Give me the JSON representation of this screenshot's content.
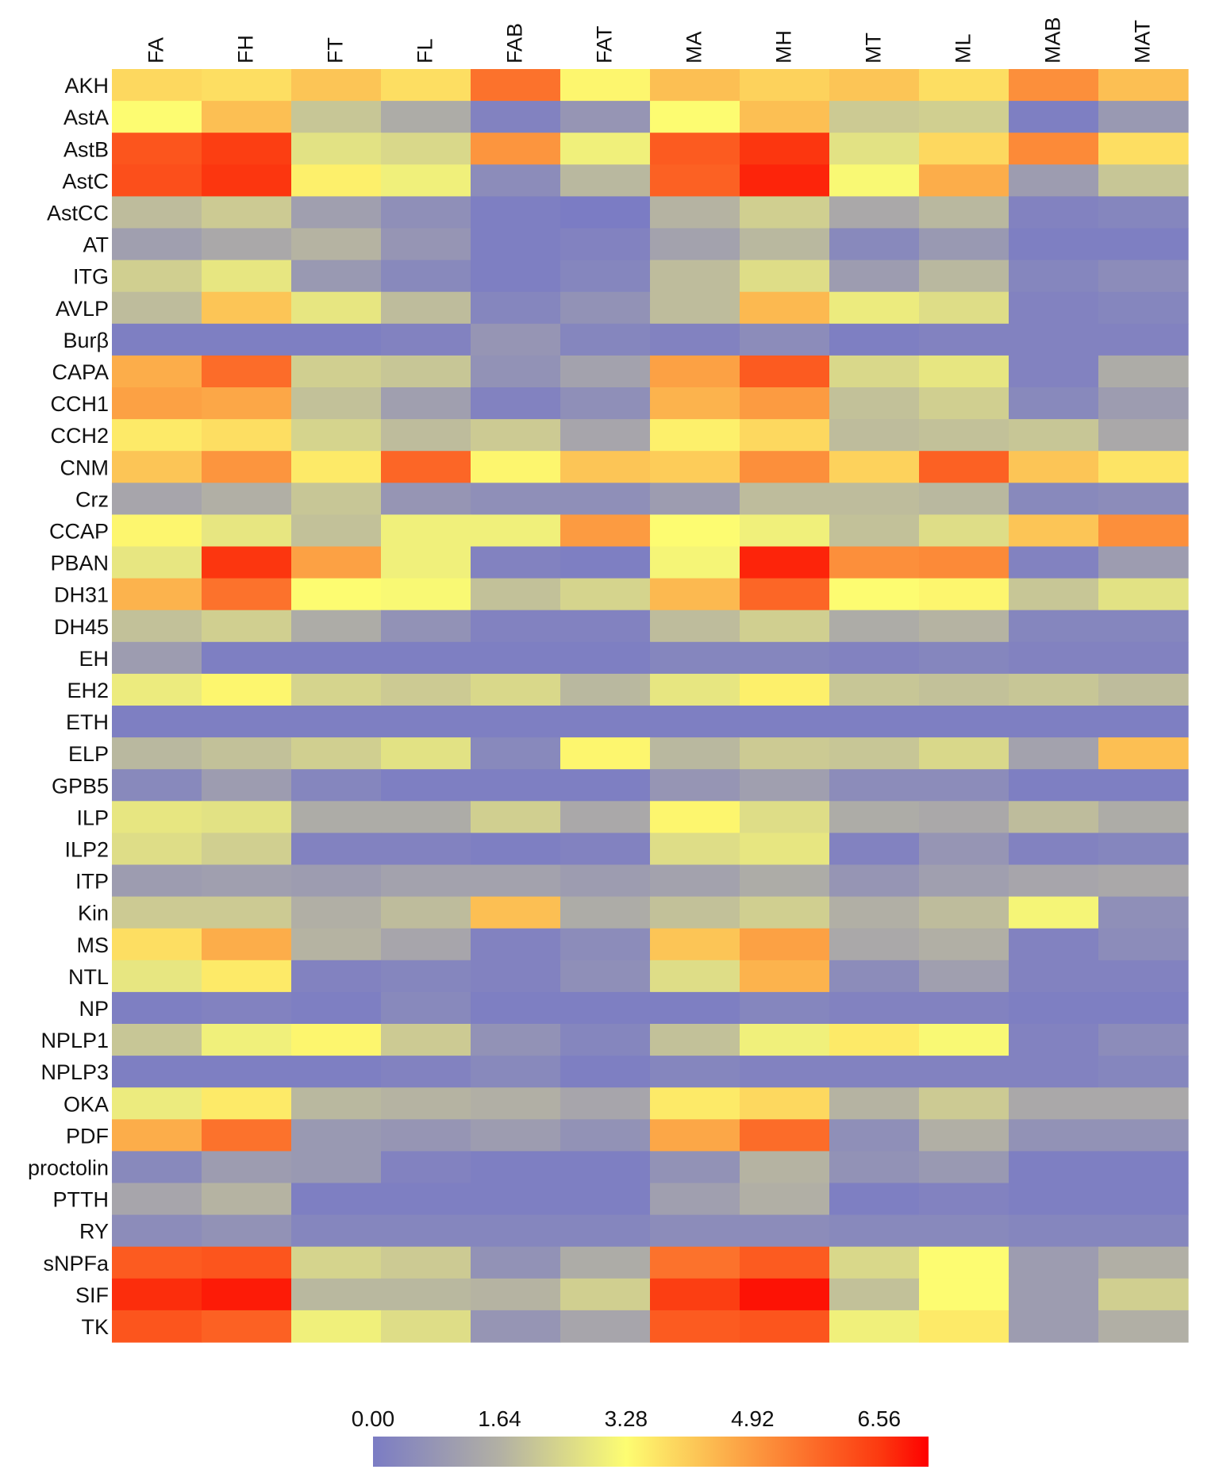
{
  "chart_data": {
    "type": "heatmap",
    "title": "",
    "xlabel": "",
    "ylabel": "",
    "columns": [
      "FA",
      "FH",
      "FT",
      "FL",
      "FAB",
      "FAT",
      "MA",
      "MH",
      "MT",
      "ML",
      "MAB",
      "MAT"
    ],
    "rows": [
      "AKH",
      "AstA",
      "AstB",
      "AstC",
      "AstCC",
      "AT",
      "ITG",
      "AVLP",
      "Burβ",
      "CAPA",
      "CCH1",
      "CCH2",
      "CNM",
      "Crz",
      "CCAP",
      "PBAN",
      "DH31",
      "DH45",
      "EH",
      "EH2",
      "ETH",
      "ELP",
      "GPB5",
      "ILP",
      "ILP2",
      "ITP",
      "Kin",
      "MS",
      "NTL",
      "NP",
      "NPLP1",
      "NPLP3",
      "OKA",
      "PDF",
      "proctolin",
      "PTTH",
      "RY",
      "sNPFa",
      "SIF",
      "TK"
    ],
    "values": [
      [
        3.9,
        3.8,
        4.2,
        3.8,
        5.6,
        3.4,
        4.3,
        4.0,
        4.2,
        3.8,
        5.1,
        4.3
      ],
      [
        3.3,
        4.3,
        2.1,
        1.5,
        0.2,
        0.8,
        3.3,
        4.3,
        2.2,
        2.3,
        0.1,
        0.9
      ],
      [
        6.1,
        6.5,
        2.7,
        2.5,
        5.0,
        3.0,
        6.0,
        6.6,
        2.7,
        3.9,
        5.2,
        3.8
      ],
      [
        6.2,
        6.6,
        3.5,
        3.0,
        0.5,
        1.8,
        5.9,
        6.8,
        3.2,
        4.6,
        1.0,
        2.1
      ],
      [
        1.9,
        2.2,
        1.1,
        0.6,
        0.1,
        0.0,
        1.7,
        2.3,
        1.4,
        1.8,
        0.2,
        0.3
      ],
      [
        1.1,
        1.4,
        1.7,
        0.8,
        0.1,
        0.2,
        1.2,
        1.8,
        0.4,
        0.9,
        0.1,
        0.1
      ],
      [
        2.3,
        2.8,
        0.9,
        0.4,
        0.1,
        0.3,
        1.9,
        2.6,
        1.0,
        1.8,
        0.3,
        0.5
      ],
      [
        1.9,
        4.2,
        2.8,
        1.9,
        0.3,
        0.7,
        1.9,
        4.4,
        2.9,
        2.6,
        0.2,
        0.3
      ],
      [
        0.1,
        0.1,
        0.1,
        0.2,
        0.8,
        0.3,
        0.2,
        0.5,
        0.1,
        0.2,
        0.2,
        0.2
      ],
      [
        4.6,
        5.7,
        2.3,
        2.1,
        0.7,
        1.2,
        4.8,
        6.0,
        2.5,
        2.8,
        0.2,
        1.5
      ],
      [
        4.8,
        4.7,
        2.0,
        1.1,
        0.2,
        0.6,
        4.5,
        4.9,
        2.0,
        2.3,
        0.4,
        1.0
      ],
      [
        3.6,
        3.8,
        2.4,
        1.9,
        2.2,
        1.3,
        3.5,
        3.9,
        1.9,
        2.0,
        2.1,
        1.4
      ],
      [
        4.2,
        5.0,
        3.6,
        5.8,
        3.4,
        4.2,
        4.1,
        5.1,
        4.0,
        5.9,
        4.2,
        3.7
      ],
      [
        1.3,
        1.6,
        2.1,
        0.8,
        0.6,
        0.6,
        1.0,
        1.9,
        1.9,
        1.8,
        0.4,
        0.5
      ],
      [
        3.4,
        2.8,
        2.0,
        3.0,
        3.0,
        4.9,
        3.3,
        3.0,
        2.0,
        2.6,
        4.2,
        5.1
      ],
      [
        2.8,
        6.6,
        4.8,
        3.0,
        0.2,
        0.1,
        3.1,
        6.8,
        5.1,
        5.2,
        0.2,
        1.0
      ],
      [
        4.5,
        5.6,
        3.3,
        3.2,
        2.0,
        2.4,
        4.4,
        5.8,
        3.3,
        3.4,
        2.1,
        2.7
      ],
      [
        2.0,
        2.3,
        1.5,
        0.7,
        0.2,
        0.2,
        1.9,
        2.3,
        1.5,
        1.7,
        0.3,
        0.3
      ],
      [
        1.0,
        0.1,
        0.1,
        0.1,
        0.1,
        0.1,
        0.3,
        0.3,
        0.2,
        0.3,
        0.2,
        0.2
      ],
      [
        2.9,
        3.4,
        2.4,
        2.2,
        2.5,
        1.8,
        2.8,
        3.5,
        2.1,
        2.0,
        2.1,
        1.9
      ],
      [
        0.1,
        0.1,
        0.1,
        0.1,
        0.1,
        0.1,
        0.1,
        0.1,
        0.1,
        0.1,
        0.1,
        0.1
      ],
      [
        1.8,
        2.0,
        2.3,
        2.7,
        0.4,
        3.4,
        1.8,
        2.2,
        2.1,
        2.5,
        1.2,
        4.3
      ],
      [
        0.4,
        1.0,
        0.3,
        0.1,
        0.1,
        0.1,
        0.8,
        1.1,
        0.5,
        0.5,
        0.1,
        0.1
      ],
      [
        2.8,
        2.7,
        1.5,
        1.5,
        2.3,
        1.4,
        3.4,
        2.6,
        1.5,
        1.4,
        1.9,
        1.5
      ],
      [
        2.6,
        2.3,
        0.2,
        0.2,
        0.1,
        0.2,
        2.6,
        2.8,
        0.2,
        0.8,
        0.2,
        0.3
      ],
      [
        1.0,
        1.1,
        1.0,
        1.2,
        1.2,
        1.0,
        1.2,
        1.5,
        0.8,
        1.1,
        1.3,
        1.4
      ],
      [
        2.2,
        2.2,
        1.6,
        1.9,
        4.3,
        1.5,
        2.0,
        2.3,
        1.6,
        1.9,
        3.1,
        0.6
      ],
      [
        3.8,
        4.6,
        1.7,
        1.3,
        0.2,
        0.5,
        4.2,
        4.8,
        1.4,
        1.6,
        0.2,
        0.5
      ],
      [
        2.8,
        3.6,
        0.2,
        0.3,
        0.2,
        0.6,
        2.6,
        4.5,
        0.5,
        1.1,
        0.2,
        0.2
      ],
      [
        0.1,
        0.2,
        0.1,
        0.4,
        0.1,
        0.1,
        0.1,
        0.3,
        0.2,
        0.2,
        0.1,
        0.1
      ],
      [
        2.1,
        3.0,
        3.4,
        2.2,
        0.7,
        0.3,
        2.0,
        3.0,
        3.6,
        3.2,
        0.2,
        0.5
      ],
      [
        0.1,
        0.1,
        0.1,
        0.2,
        0.4,
        0.1,
        0.3,
        0.2,
        0.2,
        0.2,
        0.2,
        0.3
      ],
      [
        2.9,
        3.6,
        1.8,
        1.7,
        1.6,
        1.3,
        3.6,
        3.9,
        1.7,
        2.2,
        1.4,
        1.4
      ],
      [
        4.6,
        5.6,
        0.9,
        0.8,
        1.0,
        0.7,
        4.7,
        5.7,
        0.6,
        1.6,
        0.7,
        0.7
      ],
      [
        0.4,
        1.0,
        0.9,
        0.2,
        0.1,
        0.1,
        0.7,
        1.7,
        0.7,
        0.9,
        0.1,
        0.1
      ],
      [
        1.3,
        1.7,
        0.1,
        0.1,
        0.1,
        0.1,
        1.1,
        1.6,
        0.1,
        0.2,
        0.1,
        0.1
      ],
      [
        0.5,
        0.7,
        0.3,
        0.3,
        0.3,
        0.3,
        0.5,
        0.5,
        0.4,
        0.4,
        0.3,
        0.3
      ],
      [
        6.0,
        6.1,
        2.4,
        2.2,
        0.7,
        1.5,
        5.6,
        6.0,
        2.5,
        3.3,
        1.0,
        1.6
      ],
      [
        6.7,
        6.9,
        1.8,
        1.8,
        1.7,
        2.3,
        6.5,
        7.0,
        2.0,
        3.3,
        1.0,
        2.3
      ],
      [
        6.1,
        5.9,
        3.0,
        2.6,
        0.8,
        1.3,
        6.0,
        6.1,
        3.0,
        3.6,
        1.0,
        1.6
      ]
    ],
    "colorbar": {
      "ticks": [
        "0.00",
        "1.64",
        "3.28",
        "4.92",
        "6.56"
      ],
      "min": 0,
      "max": 7.2,
      "stops": [
        {
          "v": 0.0,
          "color": "#7b7cc4"
        },
        {
          "v": 1.64,
          "color": "#b2b0a4"
        },
        {
          "v": 3.28,
          "color": "#fdfd72"
        },
        {
          "v": 4.92,
          "color": "#fc9a40"
        },
        {
          "v": 6.56,
          "color": "#fc3a10"
        },
        {
          "v": 7.2,
          "color": "#fe0000"
        }
      ]
    }
  }
}
